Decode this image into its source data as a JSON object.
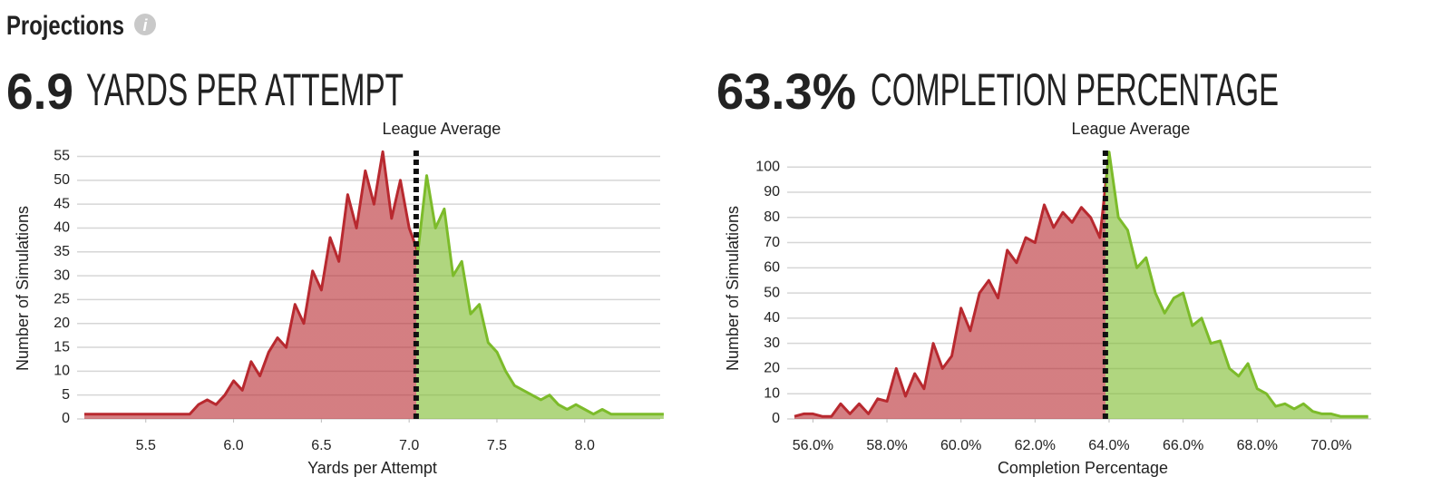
{
  "header": {
    "title": "Projections"
  },
  "chart_data": [
    {
      "type": "area-line",
      "headline_value": "6.9",
      "headline_label": "YARDS PER ATTEMPT",
      "x_label": "Yards per Attempt",
      "y_label": "Number of Simulations",
      "reference_line": {
        "label": "League Average",
        "x": 7.04
      },
      "below_color": "#b8292f",
      "above_color": "#7cbb2a",
      "x": [
        5.15,
        5.2,
        5.25,
        5.3,
        5.35,
        5.4,
        5.45,
        5.5,
        5.55,
        5.6,
        5.65,
        5.7,
        5.75,
        5.8,
        5.85,
        5.9,
        5.95,
        6,
        6.05,
        6.1,
        6.15,
        6.2,
        6.25,
        6.3,
        6.35,
        6.4,
        6.45,
        6.5,
        6.55,
        6.6,
        6.65,
        6.7,
        6.75,
        6.8,
        6.85,
        6.9,
        6.95,
        7,
        7.05,
        7.1,
        7.15,
        7.2,
        7.25,
        7.3,
        7.35,
        7.4,
        7.45,
        7.5,
        7.55,
        7.6,
        7.65,
        7.7,
        7.75,
        7.8,
        7.85,
        7.9,
        7.95,
        8,
        8.05,
        8.1,
        8.15,
        8.2,
        8.25,
        8.3,
        8.35,
        8.4,
        8.45
      ],
      "values": [
        1,
        1,
        1,
        1,
        1,
        1,
        1,
        1,
        1,
        1,
        1,
        1,
        1,
        3,
        4,
        3,
        5,
        8,
        6,
        12,
        9,
        14,
        17,
        15,
        24,
        20,
        31,
        27,
        38,
        33,
        47,
        40,
        52,
        45,
        56,
        42,
        50,
        40,
        35,
        51,
        40,
        44,
        30,
        33,
        22,
        24,
        16,
        14,
        10,
        7,
        6,
        5,
        4,
        5,
        3,
        2,
        3,
        2,
        1,
        2,
        1,
        1,
        1,
        1,
        1,
        1,
        1
      ],
      "xlim": [
        5.15,
        8.43
      ],
      "xticks": [
        5.5,
        {
          "value": 6,
          "label": "6.0"
        },
        6.5,
        {
          "value": 7,
          "label": "7.0"
        },
        7.5,
        {
          "value": 8,
          "label": "8.0"
        }
      ],
      "ylim": [
        0,
        57
      ],
      "yticks": [
        0,
        5,
        10,
        15,
        20,
        25,
        30,
        35,
        40,
        45,
        50,
        55
      ],
      "grid": true
    },
    {
      "type": "area-line",
      "headline_value": "63.3%",
      "headline_label": "COMPLETION PERCENTAGE",
      "x_label": "Completion Percentage",
      "y_label": "Number of Simulations",
      "reference_line": {
        "label": "League Average",
        "x": 63.9
      },
      "below_color": "#b8292f",
      "above_color": "#7cbb2a",
      "x": [
        55.5,
        55.75,
        56,
        56.25,
        56.5,
        56.75,
        57,
        57.25,
        57.5,
        57.75,
        58,
        58.25,
        58.5,
        58.75,
        59,
        59.25,
        59.5,
        59.75,
        60,
        60.25,
        60.5,
        60.75,
        61,
        61.25,
        61.5,
        61.75,
        62,
        62.25,
        62.5,
        62.75,
        63,
        63.25,
        63.5,
        63.75,
        64,
        64.25,
        64.5,
        64.75,
        65,
        65.25,
        65.5,
        65.75,
        66,
        66.25,
        66.5,
        66.75,
        67,
        67.25,
        67.5,
        67.75,
        68,
        68.25,
        68.5,
        68.75,
        69,
        69.25,
        69.5,
        69.75,
        70,
        70.25,
        70.5,
        70.75,
        71
      ],
      "values": [
        1,
        2,
        2,
        1,
        1,
        6,
        2,
        6,
        2,
        8,
        7,
        20,
        9,
        18,
        12,
        30,
        20,
        25,
        44,
        35,
        50,
        55,
        48,
        67,
        62,
        72,
        70,
        85,
        76,
        82,
        78,
        84,
        80,
        72,
        106,
        80,
        75,
        60,
        64,
        50,
        42,
        48,
        50,
        37,
        40,
        30,
        31,
        20,
        17,
        22,
        12,
        10,
        5,
        6,
        4,
        6,
        3,
        2,
        2,
        1,
        1,
        1,
        1
      ],
      "xlim": [
        55.5,
        71.08
      ],
      "xticks": [
        {
          "value": 56,
          "label": "56.0%"
        },
        {
          "value": 58,
          "label": "58.0%"
        },
        {
          "value": 60,
          "label": "60.0%"
        },
        {
          "value": 62,
          "label": "62.0%"
        },
        {
          "value": 64,
          "label": "64.0%"
        },
        {
          "value": 66,
          "label": "66.0%"
        },
        {
          "value": 68,
          "label": "68.0%"
        },
        {
          "value": 70,
          "label": "70.0%"
        }
      ],
      "ylim": [
        0,
        108
      ],
      "yticks": [
        0,
        10,
        20,
        30,
        40,
        50,
        60,
        70,
        80,
        90,
        100
      ],
      "grid": true
    }
  ]
}
